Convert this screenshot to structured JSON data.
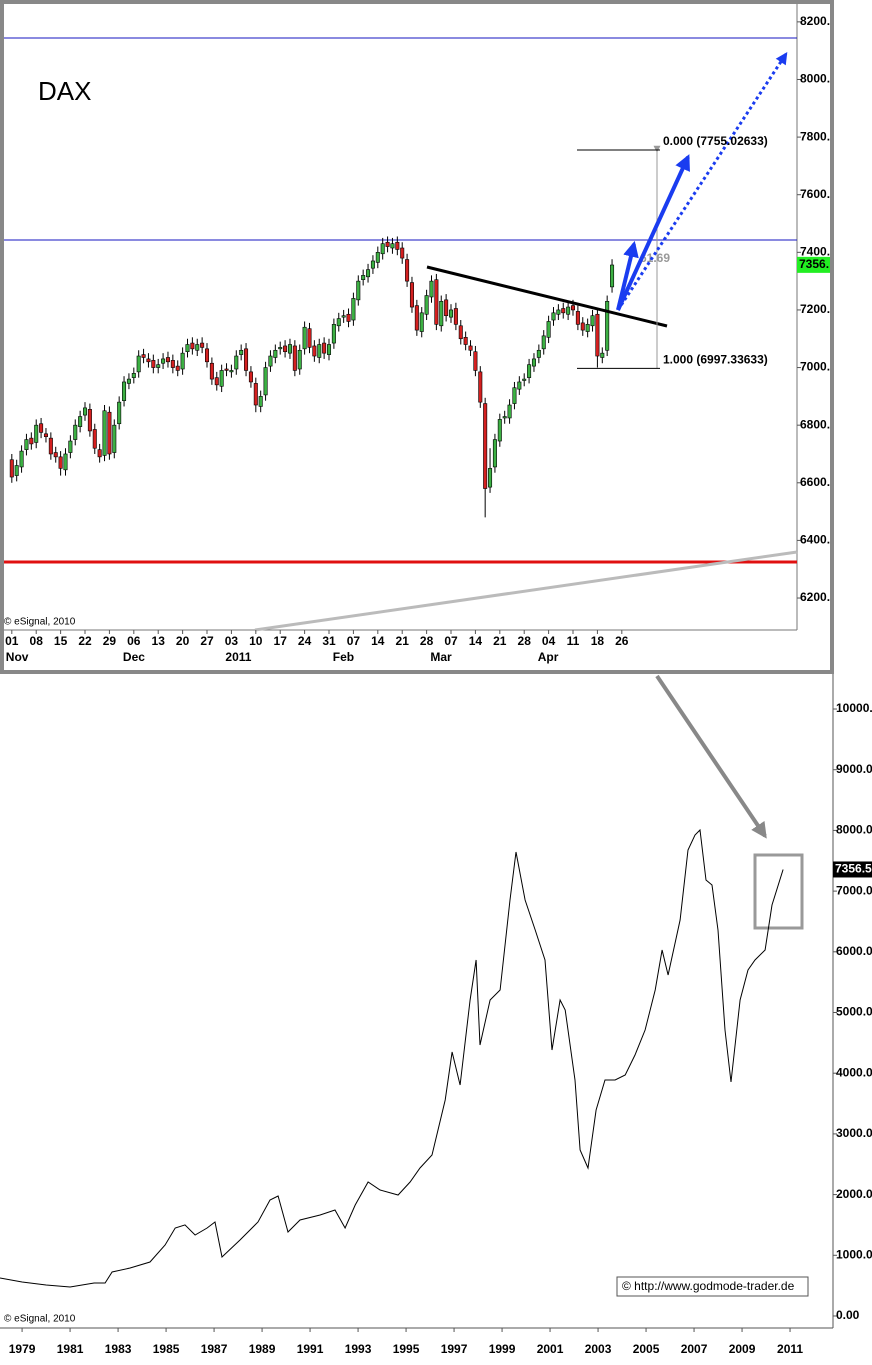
{
  "chart_data": [
    {
      "type": "candlestick",
      "title": "DAX",
      "open": [
        6680,
        6625,
        6655,
        6715,
        6755,
        6740,
        6805,
        6770,
        6755,
        6705,
        6690,
        6645,
        6705,
        6750,
        6795,
        6835,
        6855,
        6785,
        6715,
        6695,
        6845,
        6705,
        6805,
        6885,
        6945,
        6965,
        6985,
        7045,
        7030,
        7025,
        7000,
        7015,
        7035,
        7025,
        7005,
        6995,
        7055,
        7085,
        7060,
        7085,
        7065,
        7015,
        6965,
        6935,
        6995,
        6985,
        6995,
        7045,
        7065,
        6985,
        6945,
        6865,
        6905,
        7005,
        7035,
        7065,
        7075,
        7050,
        7075,
        6995,
        7065,
        7135,
        7075,
        7035,
        7085,
        7045,
        7085,
        7145,
        7175,
        7185,
        7165,
        7235,
        7305,
        7315,
        7345,
        7365,
        7395,
        7435,
        7415,
        7435,
        7415,
        7375,
        7295,
        7215,
        7125,
        7185,
        7245,
        7305,
        7145,
        7235,
        7175,
        7205,
        7145,
        7105,
        7075,
        7055,
        6985,
        6875,
        6585,
        6655,
        6745,
        6825,
        6825,
        6875,
        6925,
        6955,
        6965,
        7005,
        7035,
        7065,
        7105,
        7165,
        7185,
        7205,
        7185,
        7215,
        7195,
        7155,
        7125,
        7145,
        7185,
        7035,
        7060,
        7280
      ],
      "high": [
        6700,
        6680,
        6730,
        6770,
        6775,
        6820,
        6825,
        6790,
        6775,
        6725,
        6710,
        6720,
        6765,
        6820,
        6850,
        6880,
        6875,
        6805,
        6735,
        6870,
        6865,
        6820,
        6900,
        6970,
        6980,
        7000,
        7060,
        7065,
        7050,
        7045,
        7030,
        7050,
        7055,
        7045,
        7025,
        7070,
        7100,
        7105,
        7100,
        7105,
        7085,
        7035,
        6985,
        7010,
        7015,
        7010,
        7060,
        7080,
        7085,
        7005,
        6965,
        6920,
        7020,
        7060,
        7080,
        7090,
        7095,
        7100,
        7095,
        7080,
        7160,
        7155,
        7095,
        7100,
        7105,
        7100,
        7170,
        7190,
        7200,
        7205,
        7260,
        7320,
        7340,
        7360,
        7390,
        7420,
        7450,
        7455,
        7450,
        7455,
        7435,
        7395,
        7315,
        7235,
        7210,
        7270,
        7320,
        7325,
        7250,
        7255,
        7220,
        7225,
        7165,
        7125,
        7095,
        7075,
        7005,
        6895,
        6720,
        6770,
        6840,
        6850,
        6890,
        6950,
        6970,
        6980,
        7030,
        7050,
        7080,
        7130,
        7180,
        7210,
        7220,
        7225,
        7230,
        7235,
        7215,
        7175,
        7170,
        7200,
        7205,
        7070,
        7250,
        7376
      ],
      "low": [
        6600,
        6605,
        6635,
        6695,
        6715,
        6720,
        6755,
        6740,
        6680,
        6670,
        6625,
        6625,
        6685,
        6730,
        6775,
        6815,
        6760,
        6700,
        6670,
        6675,
        6680,
        6685,
        6785,
        6865,
        6925,
        6945,
        6965,
        7015,
        7000,
        6980,
        6980,
        6995,
        7000,
        6980,
        6970,
        6975,
        7035,
        7045,
        7040,
        7050,
        7000,
        6940,
        6920,
        6915,
        6970,
        6965,
        6975,
        7025,
        6970,
        6930,
        6845,
        6845,
        6885,
        6985,
        7015,
        7045,
        7035,
        7030,
        6970,
        6975,
        7045,
        7050,
        7020,
        7015,
        7030,
        7025,
        7065,
        7125,
        7155,
        7140,
        7145,
        7215,
        7285,
        7295,
        7325,
        7345,
        7375,
        7400,
        7395,
        7390,
        7360,
        7280,
        7190,
        7110,
        7105,
        7165,
        7225,
        7130,
        7125,
        7160,
        7155,
        7130,
        7080,
        7060,
        7040,
        6970,
        6860,
        6480,
        6565,
        6635,
        6725,
        6805,
        6805,
        6855,
        6905,
        6935,
        6945,
        6985,
        7015,
        7045,
        7085,
        7145,
        7165,
        7170,
        7165,
        7180,
        7130,
        7110,
        7105,
        7125,
        7000,
        7015,
        7040,
        7260
      ],
      "close": [
        6620,
        6660,
        6710,
        6750,
        6735,
        6800,
        6775,
        6760,
        6700,
        6690,
        6650,
        6700,
        6745,
        6800,
        6830,
        6860,
        6780,
        6720,
        6690,
        6850,
        6700,
        6800,
        6880,
        6950,
        6960,
        6980,
        7040,
        7035,
        7020,
        7000,
        7010,
        7030,
        7020,
        7000,
        6990,
        7050,
        7080,
        7065,
        7080,
        7070,
        7020,
        6960,
        6940,
        6990,
        6990,
        6990,
        7040,
        7060,
        6990,
        6950,
        6870,
        6900,
        7000,
        7040,
        7060,
        7070,
        7055,
        7080,
        6990,
        7060,
        7140,
        7070,
        7040,
        7080,
        7050,
        7080,
        7150,
        7170,
        7180,
        7160,
        7240,
        7300,
        7320,
        7340,
        7370,
        7400,
        7430,
        7420,
        7430,
        7410,
        7380,
        7300,
        7210,
        7130,
        7190,
        7250,
        7300,
        7150,
        7230,
        7180,
        7200,
        7150,
        7100,
        7080,
        7060,
        6990,
        6880,
        6580,
        6650,
        6750,
        6820,
        6830,
        6870,
        6930,
        6950,
        6960,
        7010,
        7030,
        7060,
        7110,
        7160,
        7190,
        7200,
        7190,
        7210,
        7200,
        7150,
        7130,
        7150,
        7180,
        7040,
        7050,
        7230,
        7356
      ],
      "up_color": "#3cb043",
      "down_color": "#d42020",
      "xlim": [
        -1.6,
        160.9
      ],
      "xticks": [
        {
          "value": 0,
          "label": "01"
        },
        {
          "value": 5,
          "label": "08"
        },
        {
          "value": 10,
          "label": "15"
        },
        {
          "value": 15,
          "label": "22"
        },
        {
          "value": 20,
          "label": "29"
        },
        {
          "value": 25,
          "label": "06"
        },
        {
          "value": 30,
          "label": "13"
        },
        {
          "value": 35,
          "label": "20"
        },
        {
          "value": 40,
          "label": "27"
        },
        {
          "value": 45,
          "label": "03"
        },
        {
          "value": 50,
          "label": "10"
        },
        {
          "value": 55,
          "label": "17"
        },
        {
          "value": 60,
          "label": "24"
        },
        {
          "value": 65,
          "label": "31"
        },
        {
          "value": 70,
          "label": "07"
        },
        {
          "value": 75,
          "label": "14"
        },
        {
          "value": 80,
          "label": "21"
        },
        {
          "value": 85,
          "label": "28"
        },
        {
          "value": 90,
          "label": "07"
        },
        {
          "value": 95,
          "label": "14"
        },
        {
          "value": 100,
          "label": "21"
        },
        {
          "value": 105,
          "label": "28"
        },
        {
          "value": 110,
          "label": "04"
        },
        {
          "value": 115,
          "label": "11"
        },
        {
          "value": 120,
          "label": "18"
        },
        {
          "value": 125,
          "label": "26"
        }
      ],
      "month_labels": [
        {
          "value": 0,
          "label": "Nov"
        },
        {
          "value": 24,
          "label": "Dec"
        },
        {
          "value": 45,
          "label": "2011"
        },
        {
          "value": 67,
          "label": "Feb"
        },
        {
          "value": 87,
          "label": "Mar"
        },
        {
          "value": 109,
          "label": "Apr"
        }
      ],
      "ylim": [
        6089,
        8262
      ],
      "yticks": [
        {
          "value": 6200,
          "label": "6200."
        },
        {
          "value": 6400,
          "label": "6400."
        },
        {
          "value": 6600,
          "label": "6600."
        },
        {
          "value": 6800,
          "label": "6800."
        },
        {
          "value": 7000,
          "label": "7000."
        },
        {
          "value": 7200,
          "label": "7200."
        },
        {
          "value": 7400,
          "label": "7400."
        },
        {
          "value": 7600,
          "label": "7600."
        },
        {
          "value": 7800,
          "label": "7800."
        },
        {
          "value": 8000,
          "label": "8000."
        },
        {
          "value": 8200,
          "label": "8200."
        }
      ],
      "fib_levels": [
        {
          "value": 7755.02633,
          "label": "0.000 (7755.02633)"
        },
        {
          "value": 6997.33633,
          "label": "1.000 (6997.33633)"
        }
      ],
      "fib_note": "61.69",
      "last_price": {
        "value": 7356.5,
        "label": "7356."
      },
      "watermark": "© eSignal, 2010"
    },
    {
      "type": "line",
      "color": "#000000",
      "x": [
        1978.08,
        1979.0,
        1980.0,
        1981.0,
        1982.0,
        1982.46,
        1982.75,
        1983.5,
        1984.33,
        1984.96,
        1985.38,
        1985.79,
        1986.21,
        1986.71,
        1987.04,
        1987.33,
        1988.08,
        1988.83,
        1989.33,
        1989.67,
        1990.08,
        1990.58,
        1991.42,
        1992.04,
        1992.46,
        1992.88,
        1993.42,
        1993.92,
        1994.67,
        1995.17,
        1995.58,
        1996.08,
        1996.63,
        1996.92,
        1997.25,
        1997.67,
        1997.92,
        1998.08,
        1998.5,
        1998.92,
        1999.33,
        1999.58,
        1999.96,
        2000.38,
        2000.79,
        2001.08,
        2001.42,
        2001.63,
        2002.04,
        2002.25,
        2002.58,
        2002.92,
        2003.29,
        2003.71,
        2004.13,
        2004.54,
        2004.96,
        2005.38,
        2005.67,
        2005.92,
        2006.42,
        2006.75,
        2007.04,
        2007.25,
        2007.5,
        2007.75,
        2008.0,
        2008.29,
        2008.54,
        2008.92,
        2009.25,
        2009.54,
        2009.96,
        2010.25,
        2010.71
      ],
      "values": [
        626,
        560,
        511,
        478,
        544,
        544,
        725,
        791,
        890,
        1170,
        1450,
        1500,
        1334,
        1450,
        1549,
        972,
        1252,
        1549,
        1911,
        1977,
        1384,
        1582,
        1664,
        1746,
        1450,
        1829,
        2208,
        2076,
        1994,
        2208,
        2438,
        2652,
        3558,
        4349,
        3806,
        5206,
        5865,
        4465,
        5206,
        5371,
        6853,
        7644,
        6853,
        6359,
        5865,
        4382,
        5206,
        5041,
        3888,
        2735,
        2438,
        3394,
        3888,
        3888,
        3970,
        4300,
        4712,
        5371,
        6030,
        5618,
        6524,
        7677,
        7924,
        8007,
        7183,
        7100,
        6359,
        4712,
        3855,
        5206,
        5700,
        5865,
        6030,
        6771,
        7356
      ],
      "xlim": [
        1978.08,
        2012.79
      ],
      "xticks": [
        1979,
        1981,
        1983,
        1985,
        1987,
        1989,
        1991,
        1993,
        1995,
        1997,
        1999,
        2001,
        2003,
        2005,
        2007,
        2009,
        2011
      ],
      "ylim": [
        -198,
        10610
      ],
      "yticks": [
        {
          "value": 0,
          "label": "0.00"
        },
        {
          "value": 1000,
          "label": "1000.0"
        },
        {
          "value": 2000,
          "label": "2000.0"
        },
        {
          "value": 3000,
          "label": "3000.0"
        },
        {
          "value": 4000,
          "label": "4000.0"
        },
        {
          "value": 5000,
          "label": "5000.0"
        },
        {
          "value": 6000,
          "label": "6000.0"
        },
        {
          "value": 7000,
          "label": "7000.0"
        },
        {
          "value": 8000,
          "label": "8000.0"
        },
        {
          "value": 9000,
          "label": "9000.0"
        },
        {
          "value": 10000,
          "label": "10000.0"
        }
      ],
      "last_price": {
        "value": 7356.5,
        "label": "7356.5"
      },
      "watermark": "© eSignal, 2010",
      "credit": "© http://www.godmode-trader.de"
    }
  ]
}
